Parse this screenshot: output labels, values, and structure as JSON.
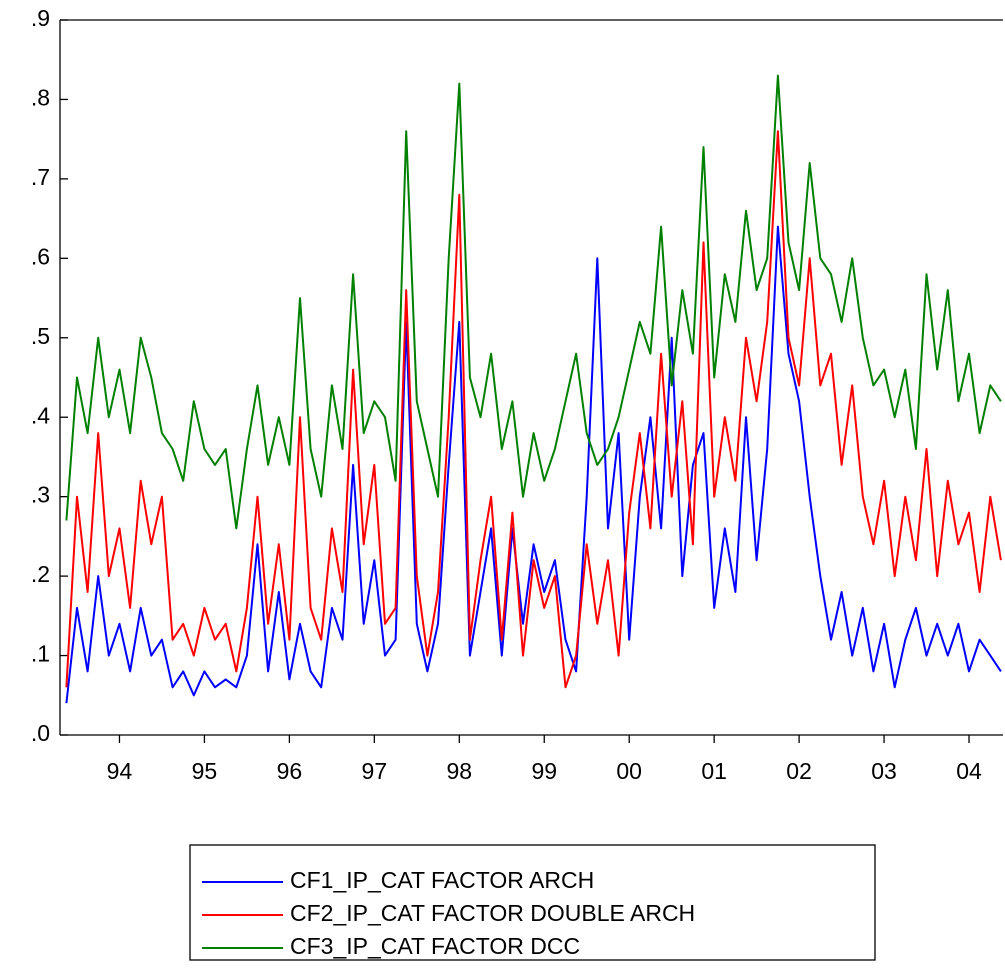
{
  "chart_data": {
    "type": "line",
    "x": [
      1993.875,
      1994,
      1994.125,
      1994.25,
      1994.375,
      1994.5,
      1994.625,
      1994.75,
      1994.875,
      1995,
      1995.125,
      1995.25,
      1995.375,
      1995.5,
      1995.625,
      1995.75,
      1995.875,
      1996,
      1996.125,
      1996.25,
      1996.375,
      1996.5,
      1996.625,
      1996.75,
      1996.875,
      1997,
      1997.125,
      1997.25,
      1997.375,
      1997.5,
      1997.625,
      1997.75,
      1997.875,
      1998,
      1998.125,
      1998.25,
      1998.375,
      1998.5,
      1998.625,
      1998.75,
      1998.875,
      1999,
      1999.125,
      1999.25,
      1999.375,
      1999.5,
      1999.625,
      1999.75,
      1999.875,
      2000,
      2000.125,
      2000.25,
      2000.375,
      2000.5,
      2000.625,
      2000.75,
      2000.875,
      2001,
      2001.125,
      2001.25,
      2001.375,
      2001.5,
      2001.625,
      2001.75,
      2001.875,
      2002,
      2002.125,
      2002.25,
      2002.375,
      2002.5,
      2002.625,
      2002.75,
      2002.875,
      2003,
      2003.125,
      2003.25,
      2003.375,
      2003.5,
      2003.625,
      2003.75,
      2003.875,
      2004,
      2004.125,
      2004.25,
      2004.375,
      2004.5,
      2004.625,
      2004.75,
      2004.875
    ],
    "series": [
      {
        "name": "CF1_IP_CAT FACTOR ARCH",
        "color": "#0000ff",
        "values": [
          0.04,
          0.16,
          0.08,
          0.2,
          0.1,
          0.14,
          0.08,
          0.16,
          0.1,
          0.12,
          0.06,
          0.08,
          0.05,
          0.08,
          0.06,
          0.07,
          0.06,
          0.1,
          0.24,
          0.08,
          0.18,
          0.07,
          0.14,
          0.08,
          0.06,
          0.16,
          0.12,
          0.34,
          0.14,
          0.22,
          0.1,
          0.12,
          0.52,
          0.14,
          0.08,
          0.14,
          0.34,
          0.52,
          0.1,
          0.18,
          0.26,
          0.1,
          0.26,
          0.14,
          0.24,
          0.18,
          0.22,
          0.12,
          0.08,
          0.3,
          0.6,
          0.26,
          0.38,
          0.12,
          0.3,
          0.4,
          0.26,
          0.5,
          0.2,
          0.34,
          0.38,
          0.16,
          0.26,
          0.18,
          0.4,
          0.22,
          0.36,
          0.64,
          0.48,
          0.42,
          0.3,
          0.2,
          0.12,
          0.18,
          0.1,
          0.16,
          0.08,
          0.14,
          0.06,
          0.12,
          0.16,
          0.1,
          0.14,
          0.1,
          0.14,
          0.08,
          0.12,
          0.1,
          0.08
        ]
      },
      {
        "name": "CF2_IP_CAT FACTOR DOUBLE ARCH",
        "color": "#ff0000",
        "values": [
          0.06,
          0.3,
          0.18,
          0.38,
          0.2,
          0.26,
          0.16,
          0.32,
          0.24,
          0.3,
          0.12,
          0.14,
          0.1,
          0.16,
          0.12,
          0.14,
          0.08,
          0.16,
          0.3,
          0.14,
          0.24,
          0.12,
          0.4,
          0.16,
          0.12,
          0.26,
          0.18,
          0.46,
          0.24,
          0.34,
          0.14,
          0.16,
          0.56,
          0.2,
          0.1,
          0.18,
          0.4,
          0.68,
          0.12,
          0.22,
          0.3,
          0.12,
          0.28,
          0.1,
          0.22,
          0.16,
          0.2,
          0.06,
          0.1,
          0.24,
          0.14,
          0.22,
          0.1,
          0.28,
          0.38,
          0.26,
          0.48,
          0.3,
          0.42,
          0.24,
          0.62,
          0.3,
          0.4,
          0.32,
          0.5,
          0.42,
          0.52,
          0.76,
          0.5,
          0.44,
          0.6,
          0.44,
          0.48,
          0.34,
          0.44,
          0.3,
          0.24,
          0.32,
          0.2,
          0.3,
          0.22,
          0.36,
          0.2,
          0.32,
          0.24,
          0.28,
          0.18,
          0.3,
          0.22
        ]
      },
      {
        "name": "CF3_IP_CAT FACTOR DCC",
        "color": "#008000",
        "values": [
          0.27,
          0.45,
          0.38,
          0.5,
          0.4,
          0.46,
          0.38,
          0.5,
          0.45,
          0.38,
          0.36,
          0.32,
          0.42,
          0.36,
          0.34,
          0.36,
          0.26,
          0.36,
          0.44,
          0.34,
          0.4,
          0.34,
          0.55,
          0.36,
          0.3,
          0.44,
          0.36,
          0.58,
          0.38,
          0.42,
          0.4,
          0.32,
          0.76,
          0.42,
          0.36,
          0.3,
          0.6,
          0.82,
          0.45,
          0.4,
          0.48,
          0.36,
          0.42,
          0.3,
          0.38,
          0.32,
          0.36,
          0.42,
          0.48,
          0.38,
          0.34,
          0.36,
          0.4,
          0.46,
          0.52,
          0.48,
          0.64,
          0.44,
          0.56,
          0.48,
          0.74,
          0.45,
          0.58,
          0.52,
          0.66,
          0.56,
          0.6,
          0.83,
          0.62,
          0.56,
          0.72,
          0.6,
          0.58,
          0.52,
          0.6,
          0.5,
          0.44,
          0.46,
          0.4,
          0.46,
          0.36,
          0.58,
          0.46,
          0.56,
          0.42,
          0.48,
          0.38,
          0.44,
          0.42
        ]
      }
    ],
    "xlim": [
      1993.8,
      2004.9
    ],
    "xticks": [
      {
        "value": 1994.5,
        "label": "94"
      },
      {
        "value": 1995.5,
        "label": "95"
      },
      {
        "value": 1996.5,
        "label": "96"
      },
      {
        "value": 1997.5,
        "label": "97"
      },
      {
        "value": 1998.5,
        "label": "98"
      },
      {
        "value": 1999.5,
        "label": "99"
      },
      {
        "value": 2000.5,
        "label": "00"
      },
      {
        "value": 2001.5,
        "label": "01"
      },
      {
        "value": 2002.5,
        "label": "02"
      },
      {
        "value": 2003.5,
        "label": "03"
      },
      {
        "value": 2004.5,
        "label": "04"
      }
    ],
    "ylim": [
      0,
      0.9
    ],
    "yticks": [
      {
        "value": 0,
        "label": ".0"
      },
      {
        "value": 0.1,
        "label": ".1"
      },
      {
        "value": 0.2,
        "label": ".2"
      },
      {
        "value": 0.3,
        "label": ".3"
      },
      {
        "value": 0.4,
        "label": ".4"
      },
      {
        "value": 0.5,
        "label": ".5"
      },
      {
        "value": 0.6,
        "label": ".6"
      },
      {
        "value": 0.7,
        "label": ".7"
      },
      {
        "value": 0.8,
        "label": ".8"
      },
      {
        "value": 0.9,
        "label": ".9"
      }
    ],
    "grid": false
  }
}
